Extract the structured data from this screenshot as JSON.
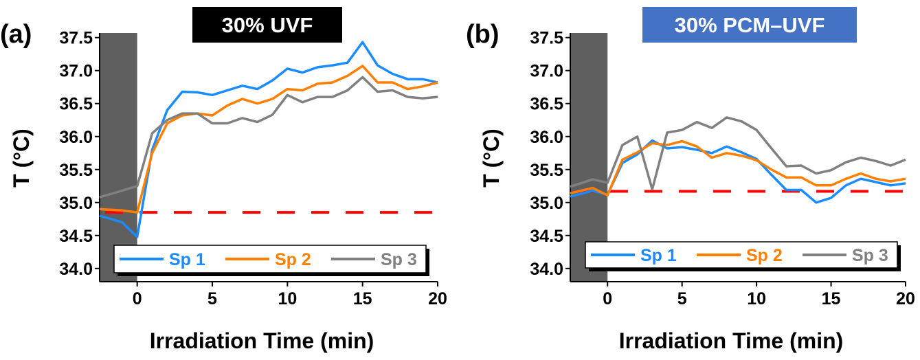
{
  "chart_data": [
    {
      "type": "line",
      "panel_label": "(a)",
      "title": "30% UVF",
      "title_bg": "#000000",
      "xlabel": "Irradiation Time (min)",
      "ylabel": "T (°C)",
      "xlim": [
        -2.5,
        20
      ],
      "ylim": [
        33.8,
        37.57
      ],
      "xticks": [
        0,
        5,
        10,
        15,
        20
      ],
      "yticks": [
        34.0,
        34.5,
        35.0,
        35.5,
        36.0,
        36.5,
        37.0,
        37.5
      ],
      "shaded_region": {
        "x": [
          -2.5,
          0
        ],
        "color": "#5f5f5f"
      },
      "reference_line": {
        "y": 34.85,
        "color": "#ff0000",
        "style": "dashed"
      },
      "legend_position": "bottom",
      "x": [
        -2.5,
        -1,
        0,
        1,
        2,
        3,
        4,
        5,
        6,
        7,
        8,
        9,
        10,
        11,
        12,
        13,
        14,
        15,
        16,
        17,
        18,
        19,
        20
      ],
      "series": [
        {
          "name": "Sp 1",
          "color": "#1a8cff",
          "values": [
            34.8,
            34.7,
            34.48,
            35.8,
            36.4,
            36.68,
            36.67,
            36.63,
            36.7,
            36.77,
            36.72,
            36.85,
            37.03,
            36.97,
            37.05,
            37.08,
            37.12,
            37.43,
            37.08,
            36.95,
            36.87,
            36.87,
            36.82
          ]
        },
        {
          "name": "Sp 2",
          "color": "#ff8000",
          "values": [
            34.9,
            34.88,
            34.85,
            35.75,
            36.2,
            36.32,
            36.35,
            36.32,
            36.47,
            36.57,
            36.5,
            36.57,
            36.72,
            36.7,
            36.8,
            36.82,
            36.92,
            37.07,
            36.82,
            36.82,
            36.72,
            36.76,
            36.82
          ]
        },
        {
          "name": "Sp 3",
          "color": "#808080",
          "values": [
            35.08,
            35.18,
            35.25,
            36.05,
            36.25,
            36.35,
            36.35,
            36.2,
            36.2,
            36.28,
            36.22,
            36.33,
            36.63,
            36.52,
            36.6,
            36.6,
            36.7,
            36.9,
            36.68,
            36.7,
            36.6,
            36.58,
            36.6
          ]
        }
      ]
    },
    {
      "type": "line",
      "panel_label": "(b)",
      "title": "30% PCM–UVF",
      "title_bg": "#4472c4",
      "xlabel": "Irradiation Time (min)",
      "ylabel": "T (°C)",
      "xlim": [
        -2.5,
        20
      ],
      "ylim": [
        33.8,
        37.57
      ],
      "xticks": [
        0,
        5,
        10,
        15,
        20
      ],
      "yticks": [
        34.0,
        34.5,
        35.0,
        35.5,
        36.0,
        36.5,
        37.0,
        37.5
      ],
      "shaded_region": {
        "x": [
          -2.5,
          0
        ],
        "color": "#5f5f5f"
      },
      "reference_line": {
        "y": 35.17,
        "color": "#ff0000",
        "style": "dashed"
      },
      "legend_position": "bottom",
      "x": [
        -2.5,
        -1,
        0,
        1,
        2,
        3,
        4,
        5,
        6,
        7,
        8,
        9,
        10,
        11,
        12,
        13,
        14,
        15,
        16,
        17,
        18,
        19,
        20
      ],
      "series": [
        {
          "name": "Sp 1",
          "color": "#1a8cff",
          "values": [
            35.09,
            35.18,
            35.12,
            35.6,
            35.73,
            35.94,
            35.82,
            35.84,
            35.8,
            35.75,
            35.85,
            35.76,
            35.66,
            35.42,
            35.19,
            35.19,
            35.0,
            35.07,
            35.26,
            35.36,
            35.31,
            35.26,
            35.29
          ]
        },
        {
          "name": "Sp 2",
          "color": "#ff8000",
          "values": [
            35.14,
            35.22,
            35.11,
            35.65,
            35.76,
            35.9,
            35.87,
            35.93,
            35.85,
            35.68,
            35.75,
            35.71,
            35.64,
            35.5,
            35.38,
            35.38,
            35.26,
            35.26,
            35.36,
            35.44,
            35.36,
            35.32,
            35.36
          ]
        },
        {
          "name": "Sp 3",
          "color": "#808080",
          "values": [
            35.24,
            35.35,
            35.3,
            35.87,
            36.0,
            35.2,
            36.06,
            36.1,
            36.22,
            36.13,
            36.29,
            36.23,
            36.1,
            35.82,
            35.55,
            35.56,
            35.44,
            35.49,
            35.61,
            35.68,
            35.63,
            35.56,
            35.65
          ]
        }
      ]
    }
  ]
}
